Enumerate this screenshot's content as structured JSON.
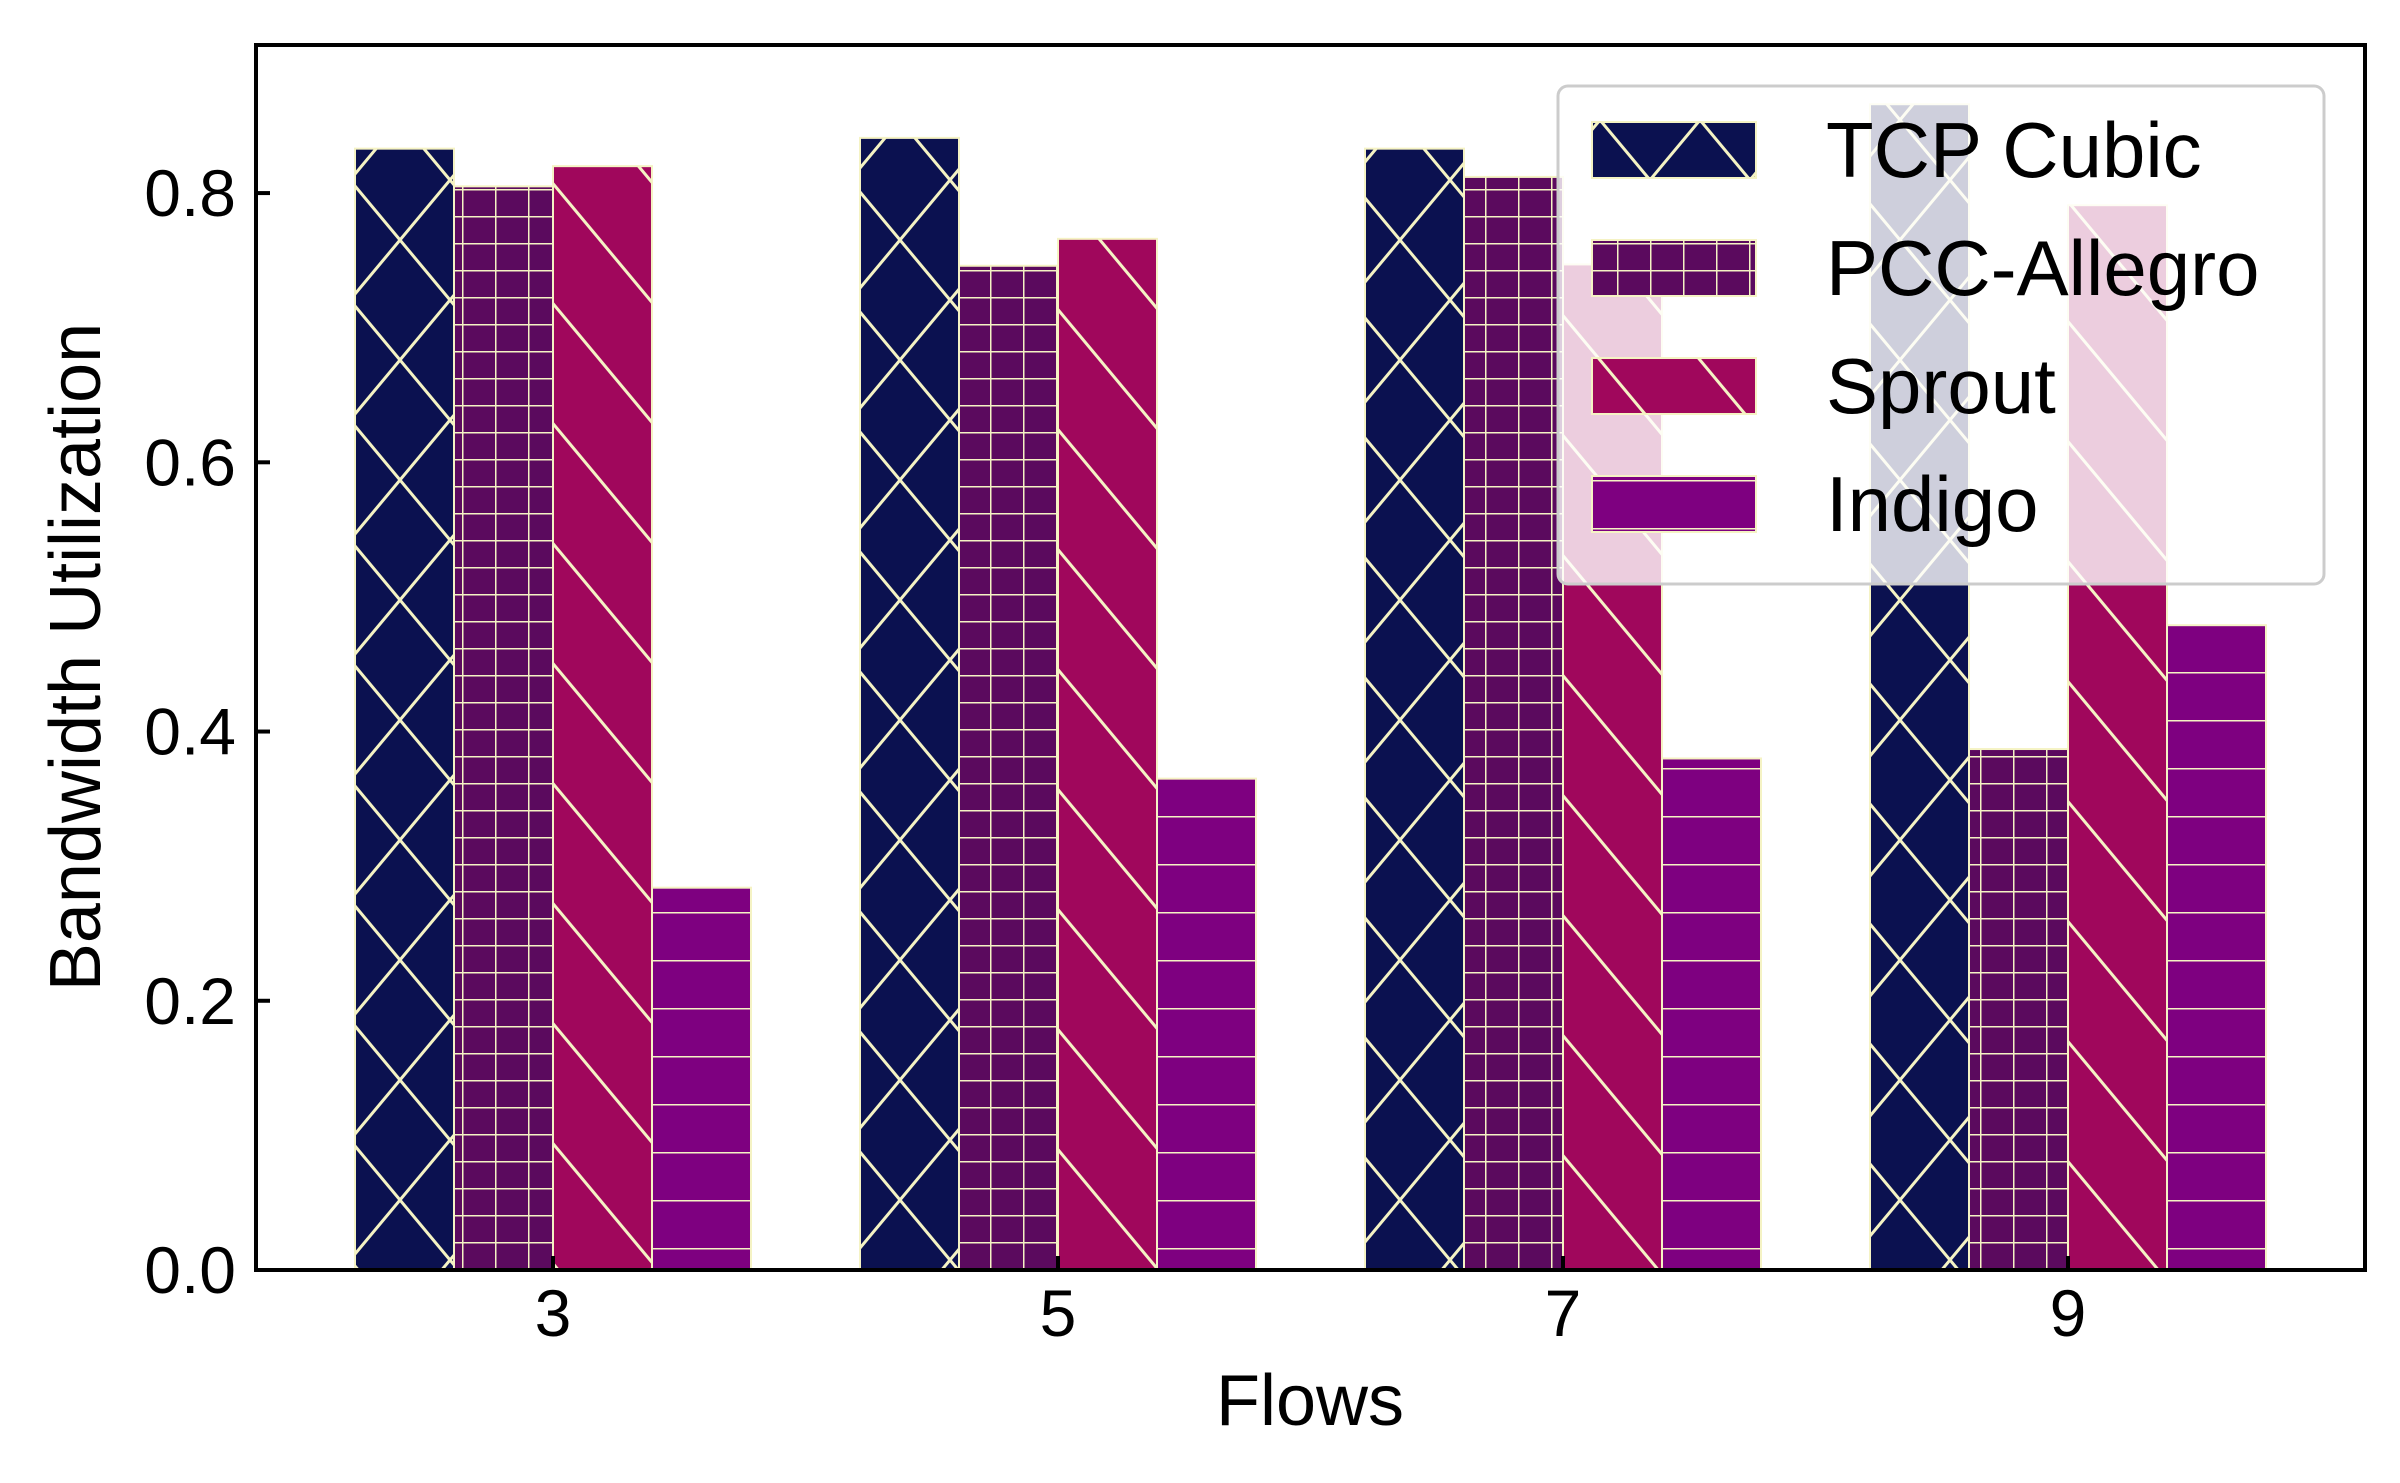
{
  "chart_data": {
    "type": "bar",
    "xlabel": "Flows",
    "ylabel": "Bandwidth Utilization",
    "categories": [
      "3",
      "5",
      "7",
      "9"
    ],
    "ylim": [
      0,
      0.91
    ],
    "yticks": [
      "0.0",
      "0.2",
      "0.4",
      "0.6",
      "0.8"
    ],
    "ytick_values": [
      0.0,
      0.2,
      0.4,
      0.6,
      0.8
    ],
    "grid": false,
    "legend_position": "top-right",
    "series": [
      {
        "name": "TCP Cubic",
        "values": [
          0.833,
          0.841,
          0.833,
          0.866
        ],
        "color": "#0b1150",
        "hatch": "cross"
      },
      {
        "name": "PCC-Allegro",
        "values": [
          0.805,
          0.746,
          0.812,
          0.387
        ],
        "color": "#5b0a5e",
        "hatch": "grid"
      },
      {
        "name": "Sprout",
        "values": [
          0.82,
          0.766,
          0.747,
          0.791
        ],
        "color": "#a0075c",
        "hatch": "diagonal"
      },
      {
        "name": "Indigo",
        "values": [
          0.284,
          0.365,
          0.38,
          0.479
        ],
        "color": "#7e0080",
        "hatch": "horizontal"
      }
    ],
    "hatch_color": "#f5f3c4",
    "axis_color": "#000000"
  }
}
